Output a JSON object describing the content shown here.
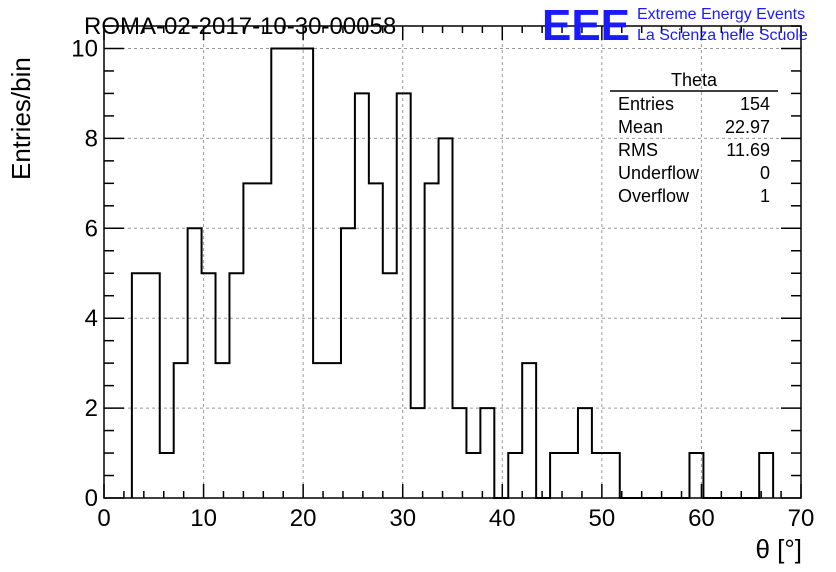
{
  "chart_data": {
    "type": "bar",
    "title": "ROMA-02-2017-10-30-00058",
    "xlabel": "θ [°]",
    "ylabel": "Entries/bin",
    "xlim": [
      0,
      70
    ],
    "ylim": [
      0,
      10.5
    ],
    "grid": true,
    "x_ticks": [
      "0",
      "10",
      "20",
      "30",
      "40",
      "50",
      "60",
      "70"
    ],
    "y_ticks": [
      "0",
      "2",
      "4",
      "6",
      "8",
      "10"
    ],
    "bin_width": 1.4,
    "bin_lower_edges": [
      2.8,
      4.2,
      5.6,
      7.0,
      8.4,
      9.8,
      11.2,
      12.6,
      14.0,
      15.4,
      16.8,
      18.2,
      19.6,
      21.0,
      22.4,
      23.8,
      25.2,
      26.6,
      28.0,
      29.4,
      30.8,
      32.2,
      33.6,
      35.0,
      36.4,
      37.8,
      39.2,
      40.6,
      42.0,
      43.4,
      44.8,
      46.2,
      47.6,
      49.0,
      50.4,
      51.8,
      53.2,
      54.6,
      56.0,
      57.4,
      58.8,
      60.2,
      61.6,
      63.0,
      64.4,
      65.8
    ],
    "values": [
      5,
      5,
      1,
      3,
      6,
      5,
      3,
      5,
      7,
      7,
      10,
      10,
      10,
      3,
      3,
      6,
      9,
      7,
      5,
      9,
      2,
      7,
      8,
      2,
      1,
      2,
      0,
      1,
      3,
      0,
      1,
      1,
      2,
      1,
      1,
      0,
      0,
      0,
      0,
      0,
      1,
      0,
      0,
      0,
      0,
      1
    ],
    "legend_position": "top-right",
    "stats": {
      "name": "Theta",
      "rows": [
        {
          "label": "Entries",
          "value": "154"
        },
        {
          "label": "Mean",
          "value": "22.97"
        },
        {
          "label": "RMS",
          "value": "11.69"
        },
        {
          "label": "Underflow",
          "value": "0"
        },
        {
          "label": "Overflow",
          "value": "1"
        }
      ]
    }
  },
  "logo": {
    "text": "EEE",
    "line1": "Extreme Energy Events",
    "line2": "La Scienza nelle Scuole",
    "color": "#1a1aff"
  },
  "colors": {
    "histogram": "#000000",
    "grid": "#999999",
    "logo": "#1a1aff"
  }
}
